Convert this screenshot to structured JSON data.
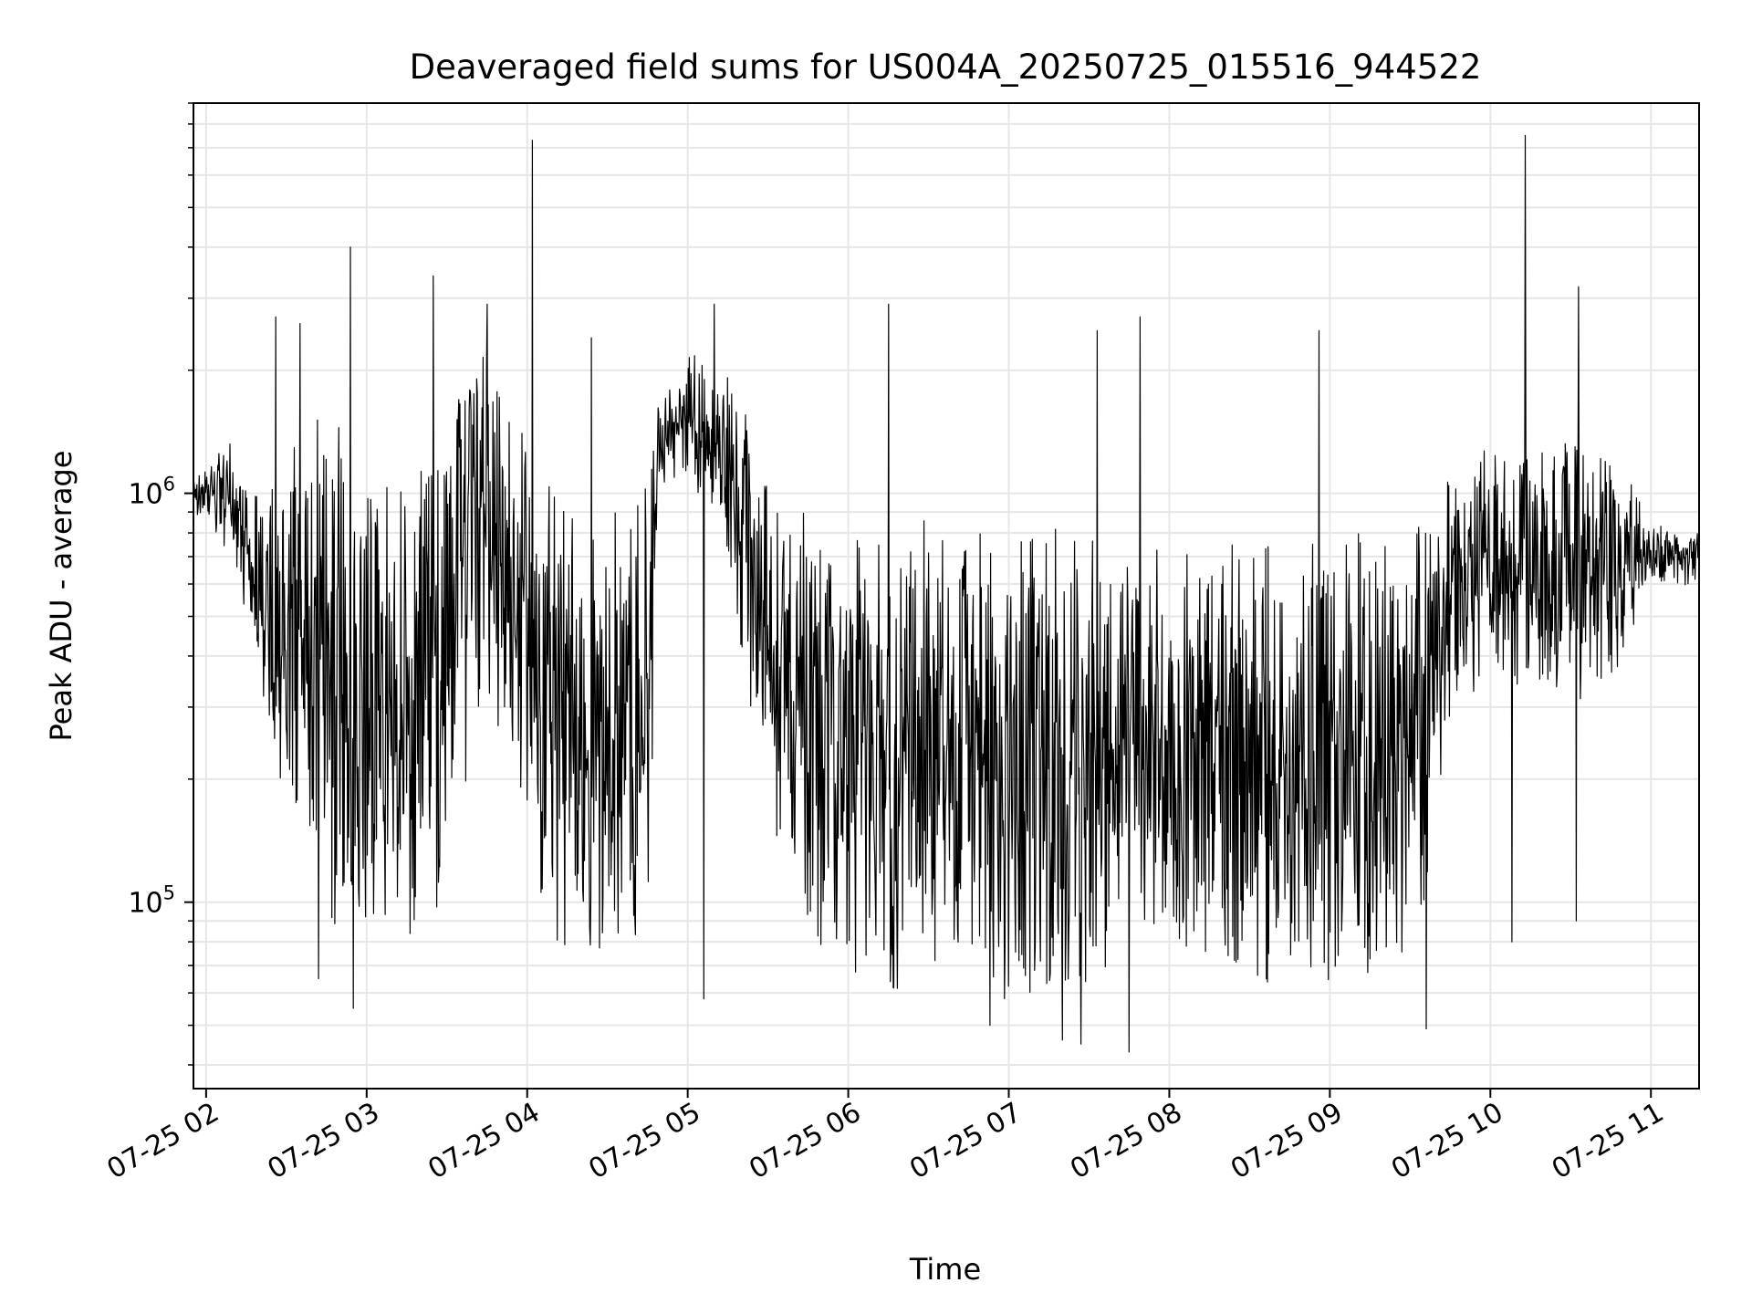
{
  "chart_data": {
    "type": "line",
    "title": "Deaveraged field sums for US004A_20250725_015516_944522",
    "xlabel": "Time",
    "ylabel": "Peak ADU - average",
    "x_axis": {
      "kind": "datetime",
      "xlim": [
        "2025-07-25 01:55:16",
        "2025-07-25 11:18:00"
      ],
      "ticks": [
        {
          "value": "2025-07-25 02:00",
          "label": "07-25 02"
        },
        {
          "value": "2025-07-25 03:00",
          "label": "07-25 03"
        },
        {
          "value": "2025-07-25 04:00",
          "label": "07-25 04"
        },
        {
          "value": "2025-07-25 05:00",
          "label": "07-25 05"
        },
        {
          "value": "2025-07-25 06:00",
          "label": "07-25 06"
        },
        {
          "value": "2025-07-25 07:00",
          "label": "07-25 07"
        },
        {
          "value": "2025-07-25 08:00",
          "label": "07-25 08"
        },
        {
          "value": "2025-07-25 09:00",
          "label": "07-25 09"
        },
        {
          "value": "2025-07-25 10:00",
          "label": "07-25 10"
        },
        {
          "value": "2025-07-25 11:00",
          "label": "07-25 11"
        }
      ]
    },
    "y_axis": {
      "scale": "log",
      "ylim": [
        35000,
        9000000
      ],
      "ticks": [
        {
          "value": 100000,
          "base": "10",
          "exp": "5"
        },
        {
          "value": 1000000,
          "base": "10",
          "exp": "6"
        }
      ]
    },
    "grid": true,
    "line_color": "#000000",
    "series": [
      {
        "envelope": [
          {
            "t": "2025-07-25 01:55",
            "low": 900000,
            "high": 1100000
          },
          {
            "t": "2025-07-25 02:10",
            "low": 650000,
            "high": 1400000
          },
          {
            "t": "2025-07-25 02:20",
            "low": 350000,
            "high": 1000000
          },
          {
            "t": "2025-07-25 02:30",
            "low": 150000,
            "high": 1300000
          },
          {
            "t": "2025-07-25 02:45",
            "low": 90000,
            "high": 1700000
          },
          {
            "t": "2025-07-25 03:00",
            "low": 80000,
            "high": 1200000
          },
          {
            "t": "2025-07-25 03:15",
            "low": 75000,
            "high": 1000000
          },
          {
            "t": "2025-07-25 03:30",
            "low": 100000,
            "high": 2000000
          },
          {
            "t": "2025-07-25 03:45",
            "low": 300000,
            "high": 2200000
          },
          {
            "t": "2025-07-25 04:00",
            "low": 120000,
            "high": 1600000
          },
          {
            "t": "2025-07-25 04:15",
            "low": 70000,
            "high": 1000000
          },
          {
            "t": "2025-07-25 04:30",
            "low": 65000,
            "high": 900000
          },
          {
            "t": "2025-07-25 04:45",
            "low": 80000,
            "high": 1200000
          },
          {
            "t": "2025-07-25 04:50",
            "low": 1000000,
            "high": 2000000
          },
          {
            "t": "2025-07-25 05:00",
            "low": 1100000,
            "high": 2300000
          },
          {
            "t": "2025-07-25 05:15",
            "low": 700000,
            "high": 2000000
          },
          {
            "t": "2025-07-25 05:30",
            "low": 150000,
            "high": 1300000
          },
          {
            "t": "2025-07-25 05:45",
            "low": 80000,
            "high": 1000000
          },
          {
            "t": "2025-07-25 06:00",
            "low": 65000,
            "high": 900000
          },
          {
            "t": "2025-07-25 06:15",
            "low": 55000,
            "high": 850000
          },
          {
            "t": "2025-07-25 06:30",
            "low": 70000,
            "high": 900000
          },
          {
            "t": "2025-07-25 06:45",
            "low": 60000,
            "high": 850000
          },
          {
            "t": "2025-07-25 07:00",
            "low": 55000,
            "high": 800000
          },
          {
            "t": "2025-07-25 07:15",
            "low": 50000,
            "high": 900000
          },
          {
            "t": "2025-07-25 07:30",
            "low": 55000,
            "high": 900000
          },
          {
            "t": "2025-07-25 07:45",
            "low": 85000,
            "high": 700000
          },
          {
            "t": "2025-07-25 08:00",
            "low": 75000,
            "high": 850000
          },
          {
            "t": "2025-07-25 08:15",
            "low": 60000,
            "high": 850000
          },
          {
            "t": "2025-07-25 08:30",
            "low": 60000,
            "high": 850000
          },
          {
            "t": "2025-07-25 08:45",
            "low": 60000,
            "high": 800000
          },
          {
            "t": "2025-07-25 09:00",
            "low": 58000,
            "high": 850000
          },
          {
            "t": "2025-07-25 09:15",
            "low": 55000,
            "high": 850000
          },
          {
            "t": "2025-07-25 09:30",
            "low": 58000,
            "high": 900000
          },
          {
            "t": "2025-07-25 09:45",
            "low": 250000,
            "high": 1200000
          },
          {
            "t": "2025-07-25 10:00",
            "low": 350000,
            "high": 1300000
          },
          {
            "t": "2025-07-25 10:15",
            "low": 300000,
            "high": 1400000
          },
          {
            "t": "2025-07-25 10:30",
            "low": 300000,
            "high": 1600000
          },
          {
            "t": "2025-07-25 10:45",
            "low": 300000,
            "high": 1400000
          },
          {
            "t": "2025-07-25 11:00",
            "low": 600000,
            "high": 850000
          },
          {
            "t": "2025-07-25 11:18",
            "low": 580000,
            "high": 800000
          }
        ],
        "peaks": [
          {
            "t": "2025-07-25 02:26",
            "value": 2700000
          },
          {
            "t": "2025-07-25 02:35",
            "value": 2600000
          },
          {
            "t": "2025-07-25 02:54",
            "value": 4000000
          },
          {
            "t": "2025-07-25 03:25",
            "value": 3400000
          },
          {
            "t": "2025-07-25 03:45",
            "value": 2900000
          },
          {
            "t": "2025-07-25 04:02",
            "value": 7300000
          },
          {
            "t": "2025-07-25 04:24",
            "value": 2400000
          },
          {
            "t": "2025-07-25 05:10",
            "value": 2900000
          },
          {
            "t": "2025-07-25 06:15",
            "value": 2900000
          },
          {
            "t": "2025-07-25 07:33",
            "value": 2500000
          },
          {
            "t": "2025-07-25 07:49",
            "value": 2700000
          },
          {
            "t": "2025-07-25 08:56",
            "value": 2500000
          },
          {
            "t": "2025-07-25 10:13",
            "value": 7500000
          },
          {
            "t": "2025-07-25 10:32",
            "value": 4200000
          },
          {
            "t": "2025-07-25 10:33",
            "value": 3200000
          }
        ],
        "troughs": [
          {
            "t": "2025-07-25 02:42",
            "value": 65000
          },
          {
            "t": "2025-07-25 02:55",
            "value": 55000
          },
          {
            "t": "2025-07-25 05:06",
            "value": 58000
          },
          {
            "t": "2025-07-25 06:53",
            "value": 50000
          },
          {
            "t": "2025-07-25 07:20",
            "value": 46000
          },
          {
            "t": "2025-07-25 07:27",
            "value": 45000
          },
          {
            "t": "2025-07-25 07:45",
            "value": 43000
          },
          {
            "t": "2025-07-25 09:36",
            "value": 49000
          },
          {
            "t": "2025-07-25 10:08",
            "value": 80000
          },
          {
            "t": "2025-07-25 10:32",
            "value": 90000
          }
        ]
      }
    ]
  }
}
